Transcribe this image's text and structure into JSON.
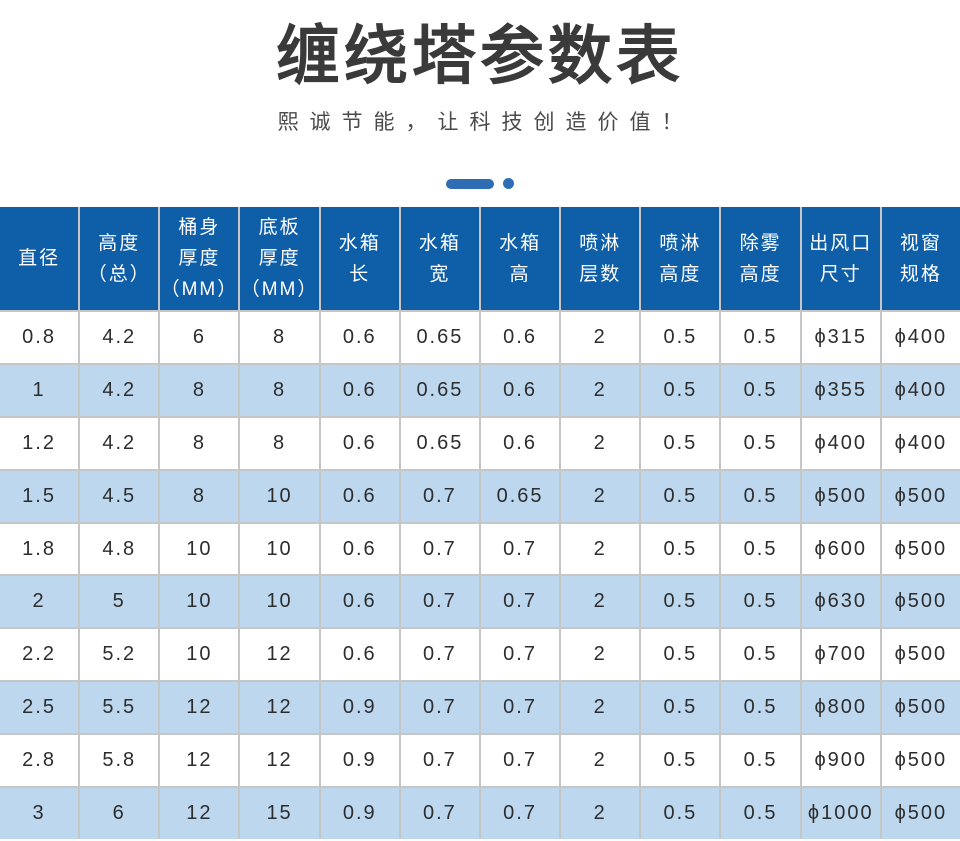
{
  "header": {
    "title": "缠绕塔参数表",
    "subtitle": "熙诚节能，让科技创造价值！"
  },
  "colors": {
    "header-bg": "#0f5ea8",
    "row-alt-bg": "#bdd7ee",
    "accent": "#2e6db4",
    "grid": "#c6c6c6",
    "title-color": "#3a3a3a",
    "subtitle-color": "#4a4a4a",
    "cell-text": "#2d2d2d",
    "header-text": "#ffffff"
  },
  "table": {
    "columns": [
      {
        "id": "diameter",
        "lines": [
          "直径"
        ]
      },
      {
        "id": "total-height",
        "lines": [
          "高度",
          "（总）"
        ]
      },
      {
        "id": "barrel-thickness",
        "lines": [
          "桶身",
          "厚度",
          "（MM）"
        ]
      },
      {
        "id": "base-plate-thickness",
        "lines": [
          "底板",
          "厚度",
          "（MM）"
        ]
      },
      {
        "id": "tank-length",
        "lines": [
          "水箱",
          "长"
        ]
      },
      {
        "id": "tank-width",
        "lines": [
          "水箱",
          "宽"
        ]
      },
      {
        "id": "tank-height",
        "lines": [
          "水箱",
          "高"
        ]
      },
      {
        "id": "spray-layers",
        "lines": [
          "喷淋",
          "层数"
        ]
      },
      {
        "id": "spray-height",
        "lines": [
          "喷淋",
          "高度"
        ]
      },
      {
        "id": "demist-height",
        "lines": [
          "除雾",
          "高度"
        ]
      },
      {
        "id": "air-outlet-size",
        "lines": [
          "出风口",
          "尺寸"
        ]
      },
      {
        "id": "window-spec",
        "lines": [
          "视窗",
          "规格"
        ]
      }
    ],
    "rows": [
      [
        "0.8",
        "4.2",
        "6",
        "8",
        "0.6",
        "0.65",
        "0.6",
        "2",
        "0.5",
        "0.5",
        "ϕ315",
        "ϕ400"
      ],
      [
        "1",
        "4.2",
        "8",
        "8",
        "0.6",
        "0.65",
        "0.6",
        "2",
        "0.5",
        "0.5",
        "ϕ355",
        "ϕ400"
      ],
      [
        "1.2",
        "4.2",
        "8",
        "8",
        "0.6",
        "0.65",
        "0.6",
        "2",
        "0.5",
        "0.5",
        "ϕ400",
        "ϕ400"
      ],
      [
        "1.5",
        "4.5",
        "8",
        "10",
        "0.6",
        "0.7",
        "0.65",
        "2",
        "0.5",
        "0.5",
        "ϕ500",
        "ϕ500"
      ],
      [
        "1.8",
        "4.8",
        "10",
        "10",
        "0.6",
        "0.7",
        "0.7",
        "2",
        "0.5",
        "0.5",
        "ϕ600",
        "ϕ500"
      ],
      [
        "2",
        "5",
        "10",
        "10",
        "0.6",
        "0.7",
        "0.7",
        "2",
        "0.5",
        "0.5",
        "ϕ630",
        "ϕ500"
      ],
      [
        "2.2",
        "5.2",
        "10",
        "12",
        "0.6",
        "0.7",
        "0.7",
        "2",
        "0.5",
        "0.5",
        "ϕ700",
        "ϕ500"
      ],
      [
        "2.5",
        "5.5",
        "12",
        "12",
        "0.9",
        "0.7",
        "0.7",
        "2",
        "0.5",
        "0.5",
        "ϕ800",
        "ϕ500"
      ],
      [
        "2.8",
        "5.8",
        "12",
        "12",
        "0.9",
        "0.7",
        "0.7",
        "2",
        "0.5",
        "0.5",
        "ϕ900",
        "ϕ500"
      ],
      [
        "3",
        "6",
        "12",
        "15",
        "0.9",
        "0.7",
        "0.7",
        "2",
        "0.5",
        "0.5",
        "ϕ1000",
        "ϕ500"
      ]
    ]
  }
}
